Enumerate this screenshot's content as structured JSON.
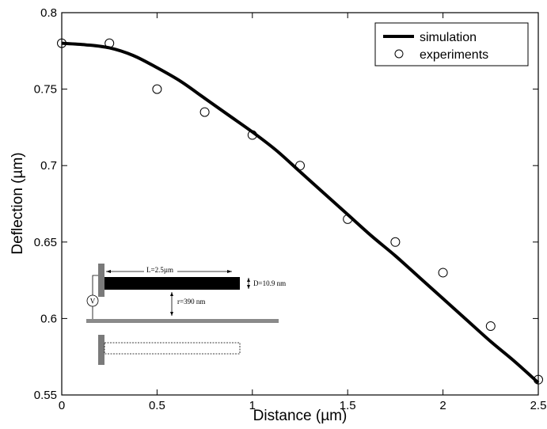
{
  "chart_data": {
    "type": "line",
    "xlabel": "Distance (µm)",
    "ylabel": "Deflection (µm)",
    "xlim": [
      0,
      2.5
    ],
    "ylim": [
      0.55,
      0.8
    ],
    "xticks": [
      0,
      0.5,
      1,
      1.5,
      2,
      2.5
    ],
    "xtick_labels": [
      "0",
      "0.5",
      "1",
      "1.5",
      "2",
      "2.5"
    ],
    "yticks": [
      0.55,
      0.6,
      0.65,
      0.7,
      0.75,
      0.8
    ],
    "ytick_labels": [
      "0.55",
      "0.6",
      "0.65",
      "0.7",
      "0.75",
      "0.8"
    ],
    "grid": false,
    "legend_position": "top-right",
    "series": [
      {
        "name": "simulation",
        "style": "line",
        "color": "#000000",
        "x": [
          0,
          0.125,
          0.25,
          0.375,
          0.5,
          0.625,
          0.75,
          0.875,
          1,
          1.125,
          1.25,
          1.375,
          1.5,
          1.625,
          1.75,
          1.875,
          2,
          2.125,
          2.25,
          2.375,
          2.5
        ],
        "y": [
          0.78,
          0.779,
          0.777,
          0.772,
          0.764,
          0.755,
          0.744,
          0.733,
          0.722,
          0.71,
          0.696,
          0.682,
          0.668,
          0.654,
          0.641,
          0.627,
          0.613,
          0.599,
          0.585,
          0.572,
          0.558
        ]
      },
      {
        "name": "experiments",
        "style": "scatter",
        "marker": "open-circle",
        "color": "#000000",
        "x": [
          0,
          0.25,
          0.5,
          0.75,
          1,
          1.25,
          1.5,
          1.75,
          2,
          2.25,
          2.5
        ],
        "y": [
          0.78,
          0.78,
          0.75,
          0.735,
          0.72,
          0.7,
          0.665,
          0.65,
          0.63,
          0.595,
          0.56
        ]
      }
    ],
    "inset": {
      "length_label": "L=2.5µm",
      "diameter_label": "D=10.9 nm",
      "gap_label": "r=390 nm",
      "source_label": "V"
    }
  }
}
